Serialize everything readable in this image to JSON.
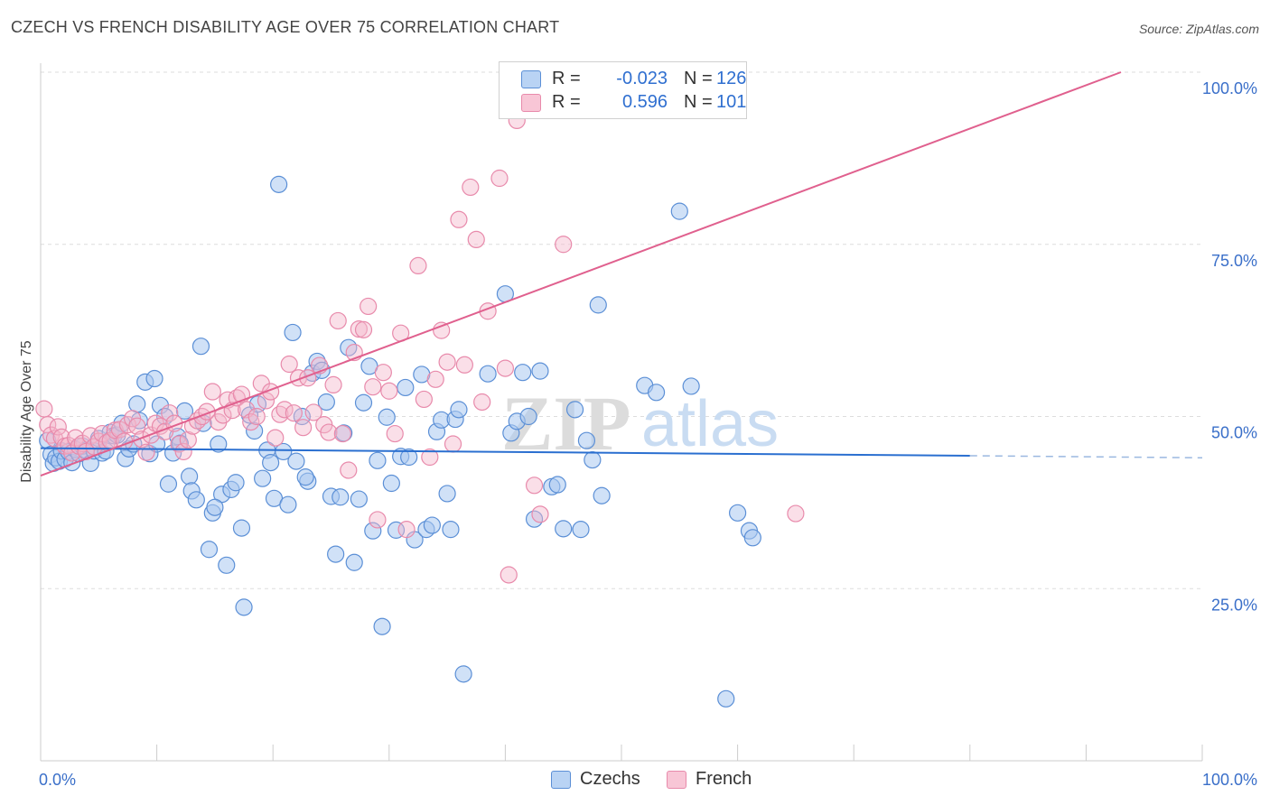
{
  "header": {
    "title": "CZECH VS FRENCH DISABILITY AGE OVER 75 CORRELATION CHART",
    "source": "Source: ZipAtlas.com"
  },
  "watermark": {
    "zip": "ZIP",
    "atlas": "atlas"
  },
  "colors": {
    "czechs_fill": "#a9c8f0",
    "czechs_stroke": "#5b8fd6",
    "czechs_line": "#2a6fd0",
    "french_fill": "#f5b8cc",
    "french_stroke": "#e88aab",
    "french_line": "#e0608e",
    "grid": "#dddddd",
    "axis_text": "#3a6fc9"
  },
  "legend": {
    "rows": [
      {
        "swatch": "czechs",
        "r_label": "R =",
        "r_value": "-0.023",
        "n_label": "N =",
        "n_value": "126"
      },
      {
        "swatch": "french",
        "r_label": "R =",
        "r_value": "0.596",
        "n_label": "N =",
        "n_value": "101"
      }
    ]
  },
  "bottom_legend": [
    {
      "swatch": "czechs",
      "label": "Czechs"
    },
    {
      "swatch": "french",
      "label": "French"
    }
  ],
  "chart_data": {
    "type": "scatter",
    "title": "CZECH VS FRENCH DISABILITY AGE OVER 75 CORRELATION CHART",
    "xlabel": "",
    "ylabel": "Disability Age Over 75",
    "xlim": [
      0,
      100
    ],
    "ylim": [
      0,
      100
    ],
    "x_tick_labels": {
      "left": "0.0%",
      "right": "100.0%"
    },
    "y_ticks": [
      25,
      50,
      75,
      100
    ],
    "y_tick_labels": [
      "25.0%",
      "50.0%",
      "75.0%",
      "100.0%"
    ],
    "grid": true,
    "series": [
      {
        "name": "Czechs",
        "r": -0.023,
        "n": 126,
        "trend": {
          "x0": 0,
          "y0": 45.4,
          "x1": 80,
          "y1": 44.3,
          "dashed_to": 100,
          "dashed_y": 44.0
        },
        "points": [
          [
            0.6,
            46.5
          ],
          [
            0.9,
            44.5
          ],
          [
            1.1,
            43.2
          ],
          [
            1.3,
            44.0
          ],
          [
            1.6,
            43.5
          ],
          [
            1.8,
            45.0
          ],
          [
            2.1,
            43.8
          ],
          [
            2.4,
            44.9
          ],
          [
            2.7,
            43.3
          ],
          [
            3.0,
            45.2
          ],
          [
            3.3,
            44.6
          ],
          [
            3.6,
            45.7
          ],
          [
            3.9,
            45.1
          ],
          [
            4.3,
            43.2
          ],
          [
            4.6,
            45.0
          ],
          [
            5.0,
            46.8
          ],
          [
            5.3,
            44.7
          ],
          [
            5.6,
            45.0
          ],
          [
            6.0,
            47.7
          ],
          [
            6.3,
            47.2
          ],
          [
            6.6,
            47.3
          ],
          [
            7.0,
            49.0
          ],
          [
            7.3,
            43.9
          ],
          [
            7.6,
            45.3
          ],
          [
            8.0,
            46.0
          ],
          [
            8.3,
            51.8
          ],
          [
            8.5,
            49.4
          ],
          [
            9.0,
            55.0
          ],
          [
            9.4,
            44.6
          ],
          [
            9.8,
            55.5
          ],
          [
            10.0,
            46.0
          ],
          [
            10.3,
            51.6
          ],
          [
            10.7,
            50.0
          ],
          [
            11.0,
            40.2
          ],
          [
            11.4,
            44.7
          ],
          [
            11.8,
            47.1
          ],
          [
            12.0,
            46.1
          ],
          [
            12.4,
            50.8
          ],
          [
            12.8,
            41.3
          ],
          [
            13.0,
            39.2
          ],
          [
            13.4,
            37.9
          ],
          [
            13.8,
            60.2
          ],
          [
            14.0,
            49.0
          ],
          [
            14.5,
            30.7
          ],
          [
            14.8,
            36.0
          ],
          [
            15.3,
            46.0
          ],
          [
            15.6,
            38.7
          ],
          [
            16.0,
            28.4
          ],
          [
            16.4,
            39.4
          ],
          [
            16.8,
            40.4
          ],
          [
            17.3,
            33.8
          ],
          [
            17.5,
            22.3
          ],
          [
            18.0,
            50.2
          ],
          [
            18.4,
            47.9
          ],
          [
            18.7,
            51.8
          ],
          [
            19.1,
            41.0
          ],
          [
            19.5,
            45.1
          ],
          [
            19.8,
            43.3
          ],
          [
            20.1,
            38.1
          ],
          [
            20.5,
            83.7
          ],
          [
            20.9,
            44.9
          ],
          [
            21.3,
            37.2
          ],
          [
            21.7,
            62.2
          ],
          [
            22.0,
            43.5
          ],
          [
            22.5,
            50.0
          ],
          [
            23.0,
            40.6
          ],
          [
            23.4,
            56.3
          ],
          [
            23.8,
            58.0
          ],
          [
            24.2,
            56.7
          ],
          [
            24.6,
            52.1
          ],
          [
            25.0,
            38.4
          ],
          [
            25.4,
            30.0
          ],
          [
            25.8,
            38.3
          ],
          [
            26.1,
            47.6
          ],
          [
            26.5,
            60.0
          ],
          [
            27.0,
            28.8
          ],
          [
            27.4,
            38.0
          ],
          [
            27.8,
            52.0
          ],
          [
            28.3,
            57.3
          ],
          [
            28.6,
            33.4
          ],
          [
            29.0,
            43.6
          ],
          [
            29.4,
            19.5
          ],
          [
            29.8,
            49.9
          ],
          [
            30.2,
            40.3
          ],
          [
            30.6,
            33.5
          ],
          [
            31.0,
            44.2
          ],
          [
            31.4,
            54.2
          ],
          [
            31.7,
            44.1
          ],
          [
            32.2,
            32.1
          ],
          [
            32.8,
            56.1
          ],
          [
            33.2,
            33.6
          ],
          [
            33.7,
            34.2
          ],
          [
            34.1,
            47.8
          ],
          [
            34.5,
            49.5
          ],
          [
            35.0,
            38.8
          ],
          [
            35.3,
            33.6
          ],
          [
            35.7,
            49.6
          ],
          [
            36.0,
            51.0
          ],
          [
            36.4,
            12.6
          ],
          [
            38.5,
            56.2
          ],
          [
            40.0,
            67.8
          ],
          [
            40.5,
            47.6
          ],
          [
            41.0,
            49.3
          ],
          [
            41.5,
            56.4
          ],
          [
            42.0,
            50.0
          ],
          [
            42.5,
            35.1
          ],
          [
            43.0,
            56.6
          ],
          [
            44.0,
            39.8
          ],
          [
            44.5,
            40.1
          ],
          [
            45.0,
            33.7
          ],
          [
            46.0,
            51.0
          ],
          [
            46.5,
            33.6
          ],
          [
            47.0,
            46.5
          ],
          [
            47.5,
            43.7
          ],
          [
            48.0,
            66.2
          ],
          [
            48.3,
            38.5
          ],
          [
            52.0,
            54.5
          ],
          [
            53.0,
            53.5
          ],
          [
            55.0,
            79.8
          ],
          [
            56.0,
            54.4
          ],
          [
            59.0,
            9.0
          ],
          [
            61.0,
            33.4
          ],
          [
            61.3,
            32.4
          ],
          [
            60.0,
            36.0
          ],
          [
            22.8,
            41.2
          ],
          [
            15.0,
            36.8
          ]
        ]
      },
      {
        "name": "French",
        "r": 0.596,
        "n": 101,
        "trend": {
          "x0": 0,
          "y0": 41.4,
          "x1": 93,
          "y1": 100.0
        },
        "points": [
          [
            0.3,
            51.1
          ],
          [
            0.6,
            48.8
          ],
          [
            0.9,
            47.3
          ],
          [
            1.2,
            46.8
          ],
          [
            1.5,
            48.5
          ],
          [
            1.8,
            47.0
          ],
          [
            2.1,
            45.7
          ],
          [
            2.4,
            45.8
          ],
          [
            2.7,
            44.7
          ],
          [
            3.0,
            46.9
          ],
          [
            3.3,
            45.7
          ],
          [
            3.6,
            46.1
          ],
          [
            3.9,
            44.9
          ],
          [
            4.3,
            47.2
          ],
          [
            4.6,
            45.6
          ],
          [
            5.0,
            46.4
          ],
          [
            5.3,
            47.5
          ],
          [
            5.7,
            46.2
          ],
          [
            6.0,
            46.5
          ],
          [
            6.4,
            48.0
          ],
          [
            6.8,
            48.1
          ],
          [
            7.2,
            46.4
          ],
          [
            7.5,
            48.8
          ],
          [
            7.9,
            49.7
          ],
          [
            8.3,
            48.6
          ],
          [
            8.7,
            46.7
          ],
          [
            9.1,
            44.8
          ],
          [
            9.5,
            47.3
          ],
          [
            9.9,
            49.0
          ],
          [
            10.3,
            48.6
          ],
          [
            10.7,
            47.8
          ],
          [
            11.1,
            50.5
          ],
          [
            11.5,
            49.0
          ],
          [
            11.9,
            46.0
          ],
          [
            12.3,
            44.9
          ],
          [
            12.7,
            46.6
          ],
          [
            13.1,
            48.6
          ],
          [
            13.5,
            49.4
          ],
          [
            13.9,
            50.0
          ],
          [
            14.3,
            50.7
          ],
          [
            14.8,
            53.6
          ],
          [
            15.3,
            49.2
          ],
          [
            15.7,
            50.2
          ],
          [
            16.1,
            52.4
          ],
          [
            16.5,
            50.9
          ],
          [
            16.9,
            52.7
          ],
          [
            17.3,
            53.2
          ],
          [
            17.7,
            51.0
          ],
          [
            18.1,
            49.2
          ],
          [
            18.6,
            50.0
          ],
          [
            19.0,
            54.8
          ],
          [
            19.4,
            52.3
          ],
          [
            19.8,
            53.6
          ],
          [
            20.2,
            46.9
          ],
          [
            20.6,
            50.3
          ],
          [
            21.0,
            51.0
          ],
          [
            21.4,
            57.6
          ],
          [
            21.8,
            50.5
          ],
          [
            22.2,
            55.6
          ],
          [
            22.6,
            48.4
          ],
          [
            23.0,
            55.6
          ],
          [
            23.5,
            50.6
          ],
          [
            24.0,
            57.4
          ],
          [
            24.4,
            48.8
          ],
          [
            24.8,
            47.7
          ],
          [
            25.2,
            54.6
          ],
          [
            25.6,
            63.9
          ],
          [
            26.0,
            47.5
          ],
          [
            26.5,
            42.2
          ],
          [
            27.0,
            59.3
          ],
          [
            27.4,
            62.7
          ],
          [
            27.8,
            62.6
          ],
          [
            28.2,
            66.0
          ],
          [
            28.6,
            54.3
          ],
          [
            29.0,
            35.0
          ],
          [
            29.5,
            56.4
          ],
          [
            30.0,
            53.7
          ],
          [
            30.5,
            47.5
          ],
          [
            31.0,
            62.1
          ],
          [
            31.5,
            33.6
          ],
          [
            32.5,
            71.9
          ],
          [
            33.0,
            52.5
          ],
          [
            33.5,
            44.1
          ],
          [
            34.0,
            55.4
          ],
          [
            34.5,
            62.5
          ],
          [
            35.0,
            57.9
          ],
          [
            35.5,
            46.0
          ],
          [
            36.0,
            78.6
          ],
          [
            36.5,
            57.5
          ],
          [
            37.0,
            83.3
          ],
          [
            37.5,
            75.7
          ],
          [
            38.0,
            52.1
          ],
          [
            38.5,
            65.3
          ],
          [
            39.5,
            84.6
          ],
          [
            40.0,
            57.0
          ],
          [
            40.3,
            27.0
          ],
          [
            41.0,
            93.0
          ],
          [
            42.5,
            40.0
          ],
          [
            43.0,
            35.8
          ],
          [
            45.0,
            75.0
          ],
          [
            65.0,
            35.9
          ]
        ]
      }
    ]
  }
}
